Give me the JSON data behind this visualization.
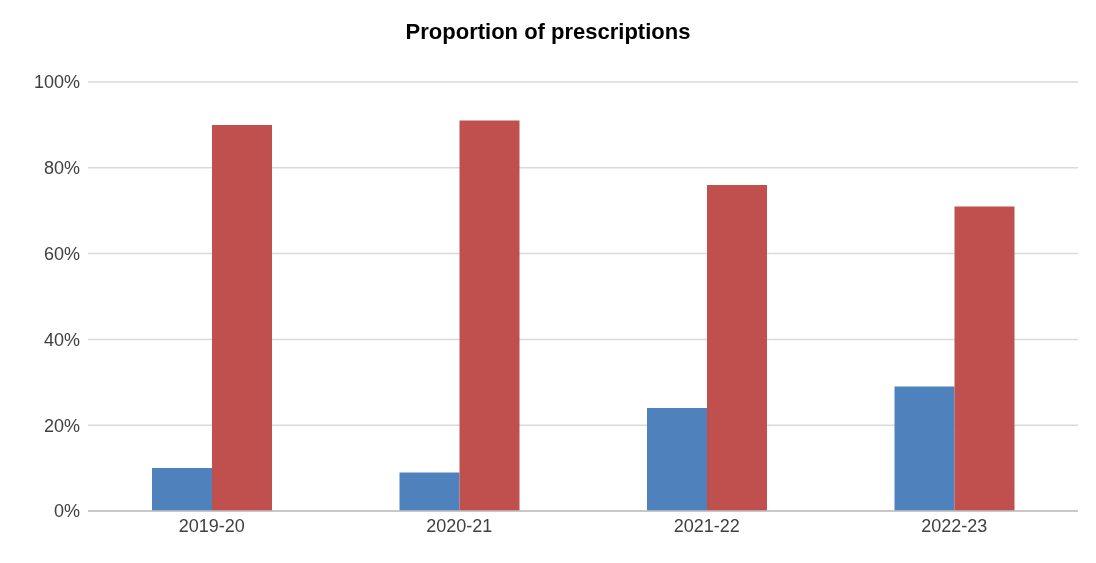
{
  "chart_data": {
    "type": "bar",
    "title": "Proportion of prescriptions",
    "categories": [
      "2019-20",
      "2020-21",
      "2021-22",
      "2022-23"
    ],
    "series": [
      {
        "color": "#4f81bd",
        "values": [
          10,
          9,
          24,
          29
        ]
      },
      {
        "color": "#c0504d",
        "values": [
          90,
          91,
          76,
          71
        ]
      }
    ],
    "ylim": [
      0,
      100
    ],
    "yticks": [
      {
        "value": 0,
        "label": "0%"
      },
      {
        "value": 20,
        "label": "20%"
      },
      {
        "value": 40,
        "label": "40%"
      },
      {
        "value": 60,
        "label": "60%"
      },
      {
        "value": 80,
        "label": "80%"
      },
      {
        "value": 100,
        "label": "100%"
      }
    ],
    "grid": "y",
    "legend": false
  }
}
